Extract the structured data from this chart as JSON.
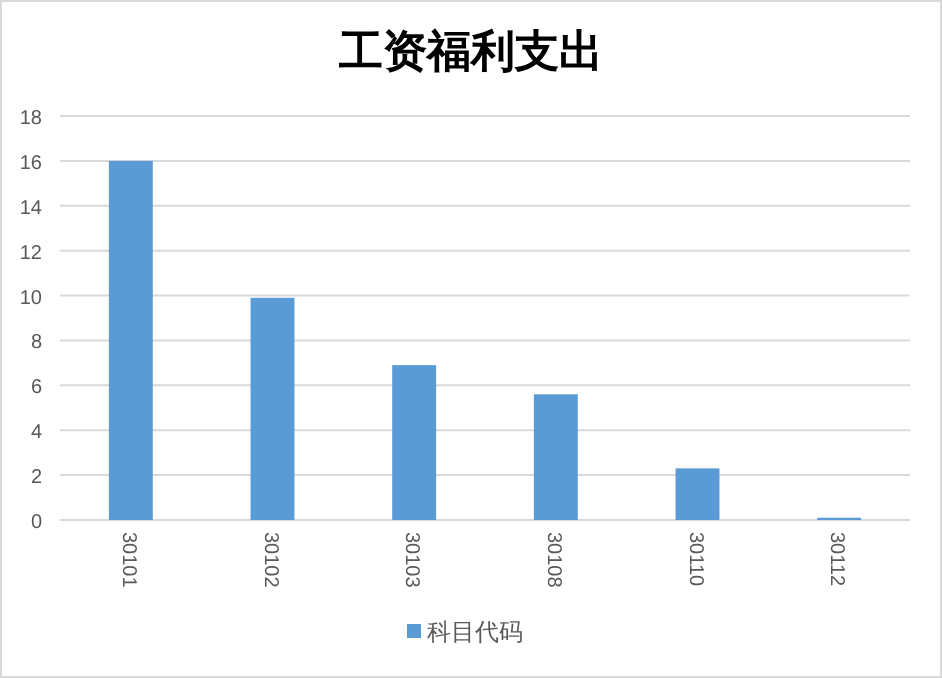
{
  "chart_data": {
    "type": "bar",
    "title": "工资福利支出",
    "categories": [
      "30101",
      "30102",
      "30103",
      "30108",
      "30110",
      "30112"
    ],
    "series": [
      {
        "name": "科目代码",
        "color": "#5b9bd5",
        "values": [
          16,
          9.9,
          6.9,
          5.6,
          2.3,
          0.1
        ]
      }
    ],
    "ylim": [
      0,
      18
    ],
    "yticks": [
      0,
      2,
      4,
      6,
      8,
      10,
      12,
      14,
      16,
      18
    ],
    "grid": "y",
    "legend": "bottom"
  }
}
